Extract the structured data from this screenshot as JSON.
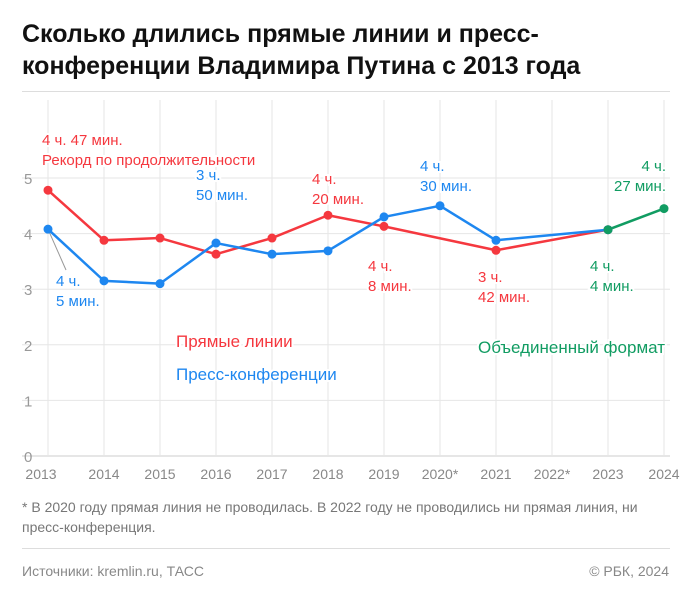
{
  "title": "Сколько длились прямые линии и пресс-конференции Владимира Путина с 2013 года",
  "footnote": "* В 2020 году прямая линия не проводилась. В 2022 году не проводились ни прямая линия, ни пресс-конференция.",
  "source": "Источники: kremlin.ru, ТАСС",
  "copyright": "© РБК, 2024",
  "chart_data": {
    "type": "line",
    "categories": [
      "2013",
      "2014",
      "2015",
      "2016",
      "2017",
      "2018",
      "2019",
      "2020*",
      "2021",
      "2022*",
      "2023",
      "2024"
    ],
    "ylim": [
      0,
      5
    ],
    "yticks": [
      "0",
      "1",
      "2",
      "3",
      "4",
      "5"
    ],
    "grid": true,
    "series": [
      {
        "name": "Прямые линии",
        "color": "#f5383f",
        "values": [
          4.78,
          3.88,
          3.92,
          3.63,
          3.92,
          4.33,
          4.13,
          null,
          3.7,
          null,
          4.07,
          null
        ]
      },
      {
        "name": "Пресс-конференции",
        "color": "#1e87f0",
        "values": [
          4.08,
          3.15,
          3.1,
          3.83,
          3.63,
          3.69,
          4.3,
          4.5,
          3.88,
          null,
          4.07,
          null
        ]
      },
      {
        "name": "Объединенный формат",
        "color": "#119c62",
        "values": [
          null,
          null,
          null,
          null,
          null,
          null,
          null,
          null,
          null,
          null,
          4.07,
          4.45
        ]
      }
    ],
    "annotations": [
      {
        "lines": [
          "4 ч. 47 мин.",
          "Рекорд по продолжительности"
        ],
        "color": "#f5383f"
      },
      {
        "lines": [
          "4 ч.",
          "5 мин."
        ],
        "color": "#1e87f0"
      },
      {
        "lines": [
          "3 ч.",
          "50 мин."
        ],
        "color": "#1e87f0"
      },
      {
        "lines": [
          "4 ч.",
          "20 мин."
        ],
        "color": "#f5383f"
      },
      {
        "lines": [
          "4 ч.",
          "8 мин."
        ],
        "color": "#f5383f"
      },
      {
        "lines": [
          "4 ч.",
          "30 мин."
        ],
        "color": "#1e87f0"
      },
      {
        "lines": [
          "3 ч.",
          "42 мин."
        ],
        "color": "#f5383f"
      },
      {
        "lines": [
          "4 ч.",
          "4 мин."
        ],
        "color": "#119c62"
      },
      {
        "lines": [
          "4 ч.",
          "27 мин."
        ],
        "color": "#119c62"
      }
    ]
  }
}
